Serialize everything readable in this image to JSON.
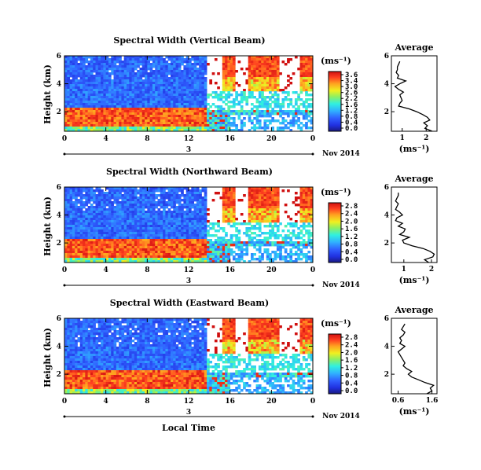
{
  "chart_data": [
    {
      "type": "heatmap",
      "title": "Spectral Width (Vertical Beam)",
      "ylabel": "Height (km)",
      "x_ticks": [
        "0",
        "4",
        "8",
        "12",
        "16",
        "20",
        "0"
      ],
      "y_ticks": [
        "2",
        "4",
        "6"
      ],
      "xlim": [
        0,
        24
      ],
      "ylim": [
        0.6,
        6.0
      ],
      "date_day": "3",
      "date_label": "Nov 2014",
      "colorbar": {
        "unit": "(ms⁻¹)",
        "ticks": [
          "3.6",
          "3.4",
          "3.0",
          "2.6",
          "2.2",
          "1.6",
          "1.2",
          "0.8",
          "0.4",
          "0.0"
        ]
      },
      "profile": {
        "title": "Average",
        "xlabel": "(ms⁻¹)",
        "x_ticks": [
          "1",
          "2"
        ],
        "y_ticks": [
          "2",
          "4",
          "6"
        ],
        "xlim": [
          0.55,
          2.45
        ]
      },
      "profile_values": {
        "heights": [
          0.6,
          0.8,
          1.0,
          1.2,
          1.4,
          1.6,
          1.8,
          2.0,
          2.2,
          2.4,
          2.6,
          2.8,
          3.0,
          3.2,
          3.4,
          3.6,
          3.8,
          4.0,
          4.2,
          4.4,
          4.6,
          4.8,
          5.0,
          5.2,
          5.4,
          5.6
        ],
        "widths": [
          2.25,
          1.95,
          2.05,
          1.9,
          2.15,
          2.05,
          1.85,
          1.6,
          1.3,
          0.85,
          0.9,
          1.0,
          0.95,
          0.9,
          1.05,
          0.85,
          0.7,
          0.9,
          1.15,
          0.8,
          0.85,
          0.75,
          0.8,
          0.8,
          0.85,
          0.9
        ]
      }
    },
    {
      "type": "heatmap",
      "title": "Spectral Width (Northward Beam)",
      "ylabel": "Height (km)",
      "x_ticks": [
        "0",
        "4",
        "8",
        "12",
        "16",
        "20",
        "0"
      ],
      "y_ticks": [
        "2",
        "4",
        "6"
      ],
      "xlim": [
        0,
        24
      ],
      "ylim": [
        0.6,
        6.0
      ],
      "date_day": "3",
      "date_label": "Nov 2014",
      "colorbar": {
        "unit": "(ms⁻¹)",
        "ticks": [
          "2.8",
          "2.4",
          "2.0",
          "1.6",
          "1.2",
          "0.8",
          "0.4",
          "0.0"
        ]
      },
      "profile": {
        "title": "Average",
        "xlabel": "(ms⁻¹)",
        "x_ticks": [
          "1",
          "2"
        ],
        "y_ticks": [
          "2",
          "4",
          "6"
        ],
        "xlim": [
          0.55,
          2.2
        ]
      },
      "profile_values": {
        "heights": [
          0.6,
          0.8,
          1.0,
          1.2,
          1.4,
          1.6,
          1.8,
          2.0,
          2.2,
          2.4,
          2.6,
          2.8,
          3.0,
          3.2,
          3.4,
          3.6,
          3.8,
          4.0,
          4.2,
          4.4,
          4.6,
          4.8,
          5.0,
          5.2,
          5.4,
          5.6
        ],
        "widths": [
          1.9,
          1.75,
          2.05,
          2.1,
          1.95,
          1.7,
          1.3,
          1.0,
          0.95,
          1.2,
          0.85,
          1.0,
          1.05,
          0.8,
          0.95,
          0.7,
          0.75,
          0.95,
          0.85,
          0.7,
          0.75,
          0.8,
          0.7,
          0.75,
          0.8,
          0.8
        ]
      }
    },
    {
      "type": "heatmap",
      "title": "Spectral Width (Eastward Beam)",
      "ylabel": "Height (km)",
      "xlabel": "Local Time",
      "x_ticks": [
        "0",
        "4",
        "8",
        "12",
        "16",
        "20",
        "0"
      ],
      "y_ticks": [
        "2",
        "4",
        "6"
      ],
      "xlim": [
        0,
        24
      ],
      "ylim": [
        0.6,
        6.0
      ],
      "date_day": "3",
      "date_label": "Nov 2014",
      "colorbar": {
        "unit": "(ms⁻¹)",
        "ticks": [
          "2.8",
          "2.4",
          "2.0",
          "1.6",
          "1.2",
          "0.8",
          "0.4",
          "0.0"
        ]
      },
      "profile": {
        "title": "Average",
        "xlabel": "(ms⁻¹)",
        "x_ticks": [
          "0.6",
          "1.6"
        ],
        "y_ticks": [
          "2",
          "4",
          "6"
        ],
        "xlim": [
          0.4,
          1.75
        ]
      },
      "profile_values": {
        "heights": [
          0.6,
          0.8,
          1.0,
          1.2,
          1.4,
          1.6,
          1.8,
          2.0,
          2.2,
          2.4,
          2.6,
          2.8,
          3.0,
          3.2,
          3.4,
          3.6,
          3.8,
          4.0,
          4.2,
          4.4,
          4.6,
          4.8,
          5.0,
          5.2,
          5.4,
          5.6
        ],
        "widths": [
          1.45,
          1.6,
          1.55,
          1.65,
          1.4,
          1.2,
          1.0,
          0.9,
          1.0,
          0.85,
          0.75,
          0.8,
          0.75,
          0.7,
          0.65,
          0.6,
          0.7,
          0.8,
          0.65,
          0.7,
          0.65,
          0.75,
          0.8,
          0.7,
          0.75,
          0.8
        ]
      }
    }
  ]
}
